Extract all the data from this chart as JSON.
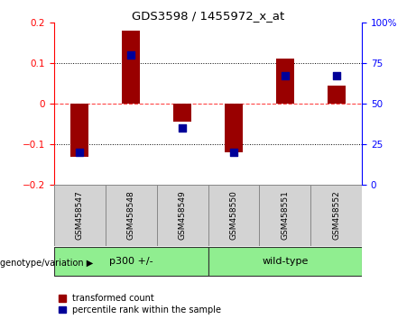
{
  "title": "GDS3598 / 1455972_x_at",
  "categories": [
    "GSM458547",
    "GSM458548",
    "GSM458549",
    "GSM458550",
    "GSM458551",
    "GSM458552"
  ],
  "red_values": [
    -0.13,
    0.18,
    -0.045,
    -0.12,
    0.11,
    0.045
  ],
  "blue_pct": [
    20,
    80,
    35,
    20,
    67,
    67
  ],
  "ylim_left": [
    -0.2,
    0.2
  ],
  "ylim_right": [
    0,
    100
  ],
  "yticks_left": [
    -0.2,
    -0.1,
    0.0,
    0.1,
    0.2
  ],
  "yticks_right": [
    0,
    25,
    50,
    75,
    100
  ],
  "group1_label": "p300 +/-",
  "group2_label": "wild-type",
  "group1_indices": [
    0,
    1,
    2
  ],
  "group2_indices": [
    3,
    4,
    5
  ],
  "group_color": "#90EE90",
  "genotype_label": "genotype/variation",
  "legend_red": "transformed count",
  "legend_blue": "percentile rank within the sample",
  "bar_color": "#990000",
  "dot_color": "#000099",
  "cat_bg": "#d3d3d3",
  "plot_bg": "#ffffff",
  "zero_line_color": "#FF4444",
  "bar_width": 0.35,
  "dot_size": 35
}
